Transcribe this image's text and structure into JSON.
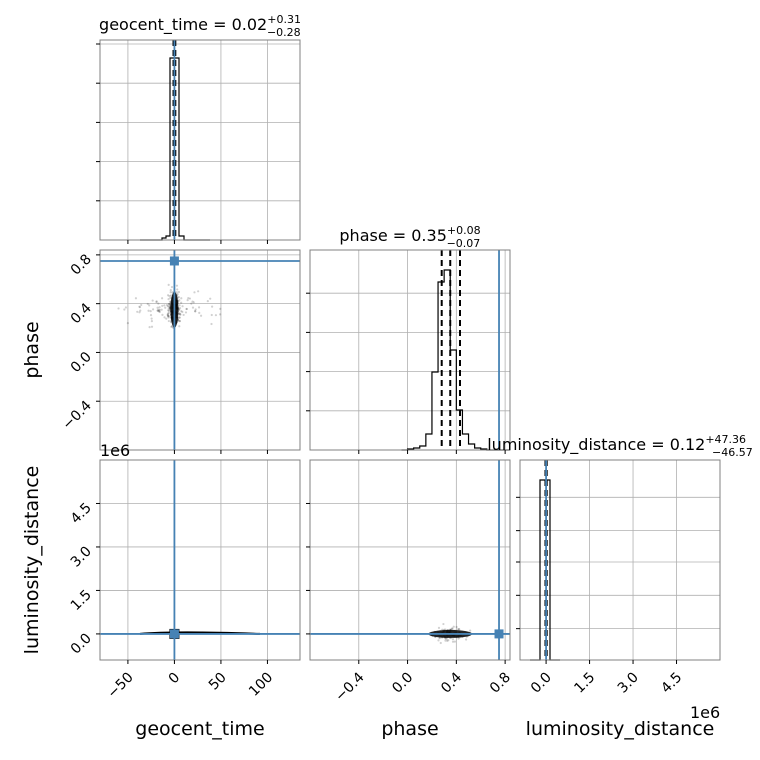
{
  "chart_data": {
    "type": "corner",
    "parameters": [
      "geocent_time",
      "phase",
      "luminosity_distance"
    ],
    "titles": {
      "geocent_time": {
        "name": "geocent_time",
        "median": "0.02",
        "plus": "+0.31",
        "minus": "−0.28"
      },
      "phase": {
        "name": "phase",
        "median": "0.35",
        "plus": "+0.08",
        "minus": "−0.07"
      },
      "luminosity_distance": {
        "name": "luminosity_distance",
        "median": "0.12",
        "plus": "+47.36",
        "minus": "−46.57"
      }
    },
    "axis_labels": {
      "geocent_time": "geocent_time",
      "phase": "phase",
      "luminosity_distance": "luminosity_distance"
    },
    "offset_text": "1e6",
    "truths": {
      "geocent_time": 0.0,
      "phase": 0.75,
      "luminosity_distance": 0.0
    },
    "ranges": {
      "geocent_time": [
        -80,
        135
      ],
      "phase": [
        -0.8,
        0.84
      ],
      "luminosity_distance": [
        -0.9,
        6.0
      ]
    },
    "ticks": {
      "geocent_time": {
        "values": [
          -50,
          0,
          50,
          100
        ],
        "labels": [
          "−50",
          "0",
          "50",
          "100"
        ]
      },
      "phase_x": {
        "values": [
          -0.4,
          0.0,
          0.4,
          0.8
        ],
        "labels": [
          "−0.4",
          "0.0",
          "0.4",
          "0.8"
        ]
      },
      "phase_y": {
        "values": [
          0.8,
          0.4,
          0.0,
          -0.4
        ],
        "labels": [
          "0.8",
          "0.4",
          "0.0",
          "−0.4"
        ]
      },
      "luminosity_distance": {
        "values": [
          0.0,
          1.5,
          3.0,
          4.5
        ],
        "labels": [
          "0.0",
          "1.5",
          "3.0",
          "4.5"
        ]
      }
    },
    "histograms": {
      "geocent_time": {
        "quantiles": [
          -0.26,
          0.02,
          0.33
        ]
      },
      "phase": {
        "quantiles": [
          0.28,
          0.35,
          0.43
        ]
      },
      "luminosity_distance": {
        "quantiles": [
          -4.66e-05,
          1e-07,
          4.74e-05
        ]
      }
    },
    "colors": {
      "truth": "#4682b4",
      "samples": "#000000",
      "grid": "#b0b0b0",
      "frame": "#808080"
    },
    "grid": true
  }
}
